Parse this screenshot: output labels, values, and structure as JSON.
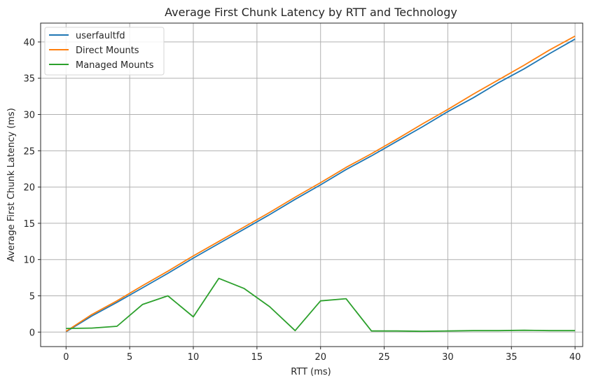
{
  "chart_data": {
    "type": "line",
    "title": "Average First Chunk Latency by RTT and Technology",
    "xlabel": "RTT (ms)",
    "ylabel": "Average First Chunk Latency (ms)",
    "xlim": [
      -2,
      40.6
    ],
    "ylim": [
      -2,
      42.6
    ],
    "xticks": [
      0,
      5,
      10,
      15,
      20,
      25,
      30,
      35,
      40
    ],
    "yticks": [
      0,
      5,
      10,
      15,
      20,
      25,
      30,
      35,
      40
    ],
    "grid": true,
    "legend_position": "top-left",
    "x": [
      0,
      2,
      4,
      6,
      8,
      10,
      12,
      14,
      16,
      18,
      20,
      22,
      24,
      26,
      28,
      30,
      32,
      34,
      36,
      38,
      40
    ],
    "series": [
      {
        "name": "userfaultfd",
        "color": "#1f77b4",
        "values": [
          0.05,
          2.2,
          4.1,
          6.1,
          8.1,
          10.2,
          12.2,
          14.2,
          16.2,
          18.3,
          20.3,
          22.4,
          24.3,
          26.3,
          28.3,
          30.4,
          32.3,
          34.4,
          36.3,
          38.4,
          40.4
        ]
      },
      {
        "name": "Direct Mounts",
        "color": "#ff7f0e",
        "values": [
          0.1,
          2.4,
          4.3,
          6.4,
          8.4,
          10.5,
          12.5,
          14.5,
          16.5,
          18.6,
          20.6,
          22.7,
          24.6,
          26.6,
          28.7,
          30.7,
          32.8,
          34.8,
          36.8,
          38.9,
          40.8
        ]
      },
      {
        "name": "Managed Mounts",
        "color": "#2ca02c",
        "values": [
          0.5,
          0.55,
          0.8,
          3.8,
          5.0,
          2.1,
          7.4,
          6.0,
          3.5,
          0.2,
          4.3,
          4.6,
          0.15,
          0.15,
          0.1,
          0.15,
          0.2,
          0.2,
          0.25,
          0.2,
          0.2
        ]
      }
    ]
  }
}
